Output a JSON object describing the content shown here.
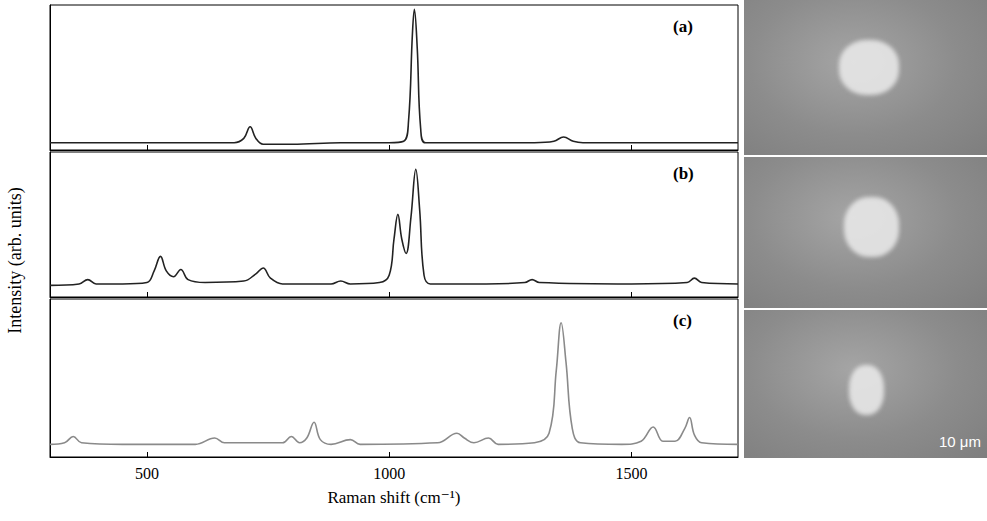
{
  "chart_data": [
    {
      "type": "line",
      "title": "(a)",
      "color": "#222222",
      "x": [
        300,
        400,
        500,
        600,
        680,
        700,
        713,
        725,
        740,
        800,
        900,
        1000,
        1030,
        1040,
        1048,
        1052,
        1058,
        1065,
        1075,
        1200,
        1300,
        1340,
        1360,
        1380,
        1400,
        1500,
        1600,
        1720
      ],
      "values": [
        5,
        5,
        5,
        5,
        5,
        8,
        16,
        8,
        4,
        4,
        5,
        5,
        6,
        20,
        80,
        97,
        70,
        15,
        5,
        5,
        5,
        6,
        9,
        6,
        5,
        5,
        5,
        5
      ],
      "xlim": [
        300,
        1720
      ],
      "ylim": [
        0,
        100
      ],
      "xticks": [
        500,
        1000,
        1500
      ],
      "tick_labels": false
    },
    {
      "type": "line",
      "title": "(b)",
      "color": "#222222",
      "ylabel": "Intensity (arb. units)",
      "x": [
        300,
        360,
        378,
        395,
        450,
        500,
        515,
        528,
        540,
        555,
        570,
        585,
        620,
        700,
        725,
        740,
        755,
        780,
        880,
        900,
        920,
        980,
        1000,
        1010,
        1018,
        1026,
        1035,
        1045,
        1055,
        1063,
        1072,
        1085,
        1200,
        1280,
        1295,
        1310,
        1500,
        1615,
        1630,
        1645,
        1720
      ],
      "values": [
        8,
        9,
        12,
        9,
        9,
        10,
        18,
        28,
        18,
        14,
        19,
        12,
        10,
        11,
        16,
        20,
        13,
        9,
        9,
        11,
        9,
        10,
        15,
        40,
        57,
        40,
        30,
        55,
        88,
        60,
        15,
        9,
        9,
        10,
        12,
        10,
        9,
        10,
        13,
        10,
        9
      ],
      "xlim": [
        300,
        1720
      ],
      "ylim": [
        0,
        100
      ],
      "xticks": [
        500,
        1000,
        1500
      ],
      "tick_labels": false
    },
    {
      "type": "line",
      "title": "(c)",
      "color": "#8a8a8a",
      "xlabel": "Raman shift (cm⁻¹)",
      "x": [
        300,
        330,
        348,
        365,
        450,
        600,
        640,
        660,
        700,
        780,
        798,
        815,
        830,
        845,
        858,
        880,
        920,
        940,
        1100,
        1140,
        1155,
        1175,
        1205,
        1225,
        1300,
        1330,
        1345,
        1355,
        1365,
        1378,
        1395,
        1480,
        1520,
        1545,
        1565,
        1590,
        1610,
        1620,
        1630,
        1645,
        1720
      ],
      "values": [
        8,
        9,
        13,
        9,
        8,
        8,
        12,
        9,
        9,
        9,
        13,
        9,
        12,
        22,
        11,
        8,
        11,
        8,
        9,
        15,
        12,
        9,
        12,
        8,
        9,
        15,
        55,
        85,
        60,
        18,
        9,
        8,
        10,
        19,
        10,
        10,
        18,
        25,
        14,
        9,
        8
      ],
      "xlim": [
        300,
        1720
      ],
      "ylim": [
        0,
        100
      ],
      "xticks": [
        500,
        1000,
        1500
      ],
      "tick_labels": "x"
    }
  ],
  "micrographs": {
    "count": 3,
    "scale_label": "10 μm"
  }
}
